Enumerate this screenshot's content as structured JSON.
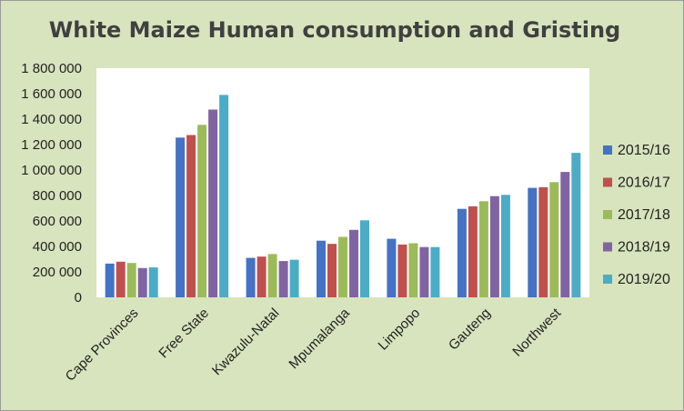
{
  "chart_data": {
    "type": "bar",
    "title": "White Maize Human consumption and Gristing",
    "xlabel": "",
    "ylabel": "",
    "ylim": [
      0,
      1800000
    ],
    "yticks": [
      "0",
      "200 000",
      "400 000",
      "600 000",
      "800 000",
      "1 000 000",
      "1 200 000",
      "1 400 000",
      "1 600 000",
      "1 800 000"
    ],
    "categories": [
      "Cape Provinces",
      "Free State",
      "Kwazulu-Natal",
      "Mpumalanga",
      "Limpopo",
      "Gauteng",
      "Northwest"
    ],
    "grid": false,
    "legend_position": "right",
    "series": [
      {
        "name": "2015/16",
        "color": "#4472c4",
        "values": [
          265000,
          1255000,
          310000,
          445000,
          460000,
          695000,
          860000
        ]
      },
      {
        "name": "2016/17",
        "color": "#c0504d",
        "values": [
          280000,
          1275000,
          320000,
          420000,
          415000,
          715000,
          865000
        ]
      },
      {
        "name": "2017/18",
        "color": "#9bbb59",
        "values": [
          270000,
          1355000,
          340000,
          475000,
          425000,
          755000,
          905000
        ]
      },
      {
        "name": "2018/19",
        "color": "#8064a2",
        "values": [
          230000,
          1475000,
          285000,
          530000,
          395000,
          795000,
          985000
        ]
      },
      {
        "name": "2019/20",
        "color": "#4bacc6",
        "values": [
          235000,
          1590000,
          295000,
          605000,
          395000,
          805000,
          1135000
        ]
      }
    ]
  }
}
